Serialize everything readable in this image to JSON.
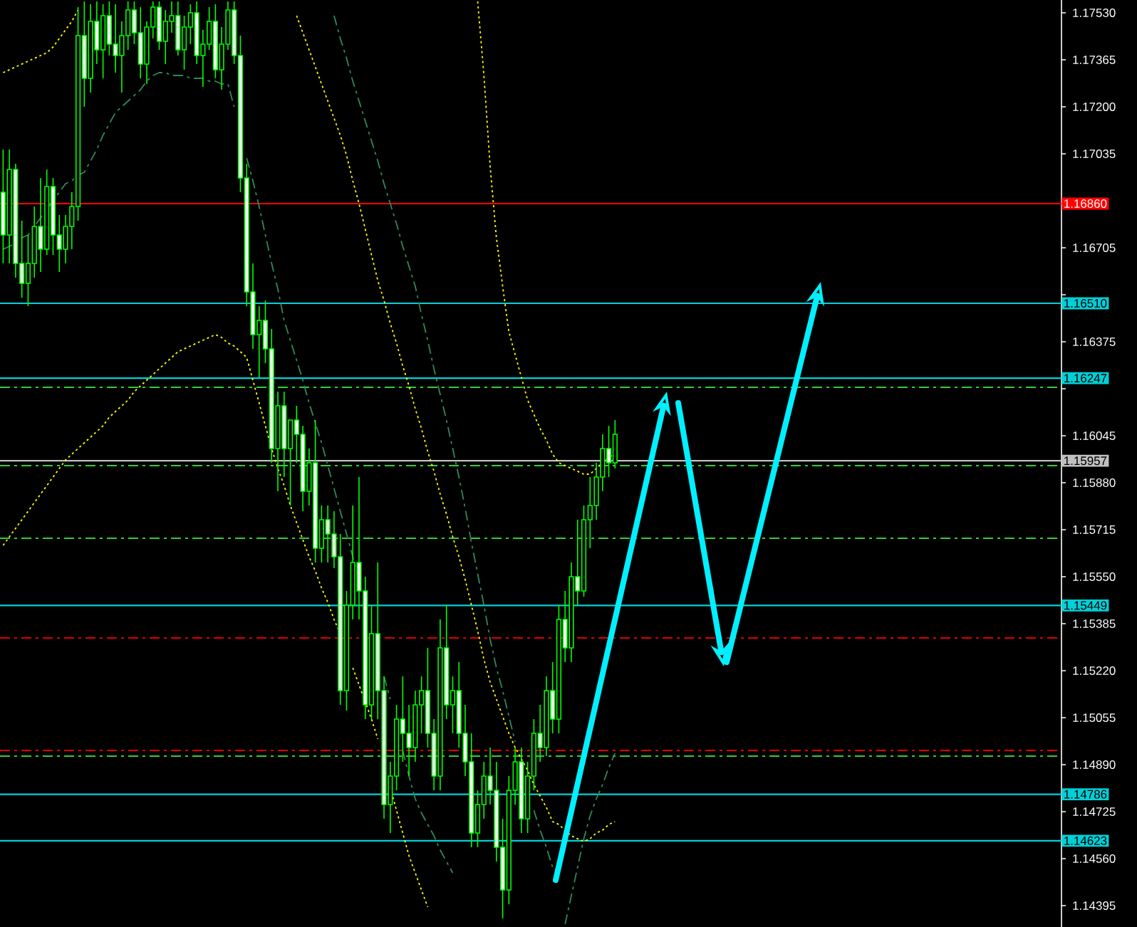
{
  "chart_data": {
    "type": "candlestick",
    "categories": [
      null,
      null,
      null,
      null,
      null,
      null,
      null,
      null,
      null,
      null,
      null,
      null,
      null,
      null,
      null,
      null,
      null,
      null,
      null,
      null,
      null,
      null,
      null,
      null,
      null,
      null,
      null,
      null,
      null,
      null,
      null,
      null,
      null,
      null,
      null,
      null,
      null,
      null,
      null,
      null,
      null,
      null,
      null,
      null,
      null,
      null,
      null,
      null,
      null,
      null,
      null,
      null,
      null,
      null,
      null,
      null,
      null,
      null,
      null,
      null,
      null,
      null,
      null,
      null,
      null,
      null,
      null,
      null,
      null,
      null,
      null,
      null,
      null,
      null,
      null,
      null,
      null,
      null,
      null,
      null,
      null,
      null,
      null,
      null,
      null,
      null,
      null,
      null,
      null,
      null,
      null,
      null,
      null,
      null,
      null,
      null,
      null,
      null,
      null,
      null,
      null,
      null,
      null,
      null,
      null,
      null,
      null,
      null,
      null,
      null,
      null,
      null,
      null,
      null,
      null,
      null,
      null,
      null,
      null,
      null,
      null,
      null,
      null,
      null,
      null,
      null,
      null,
      null,
      null,
      null,
      null,
      null,
      null,
      null,
      null,
      null,
      null,
      null,
      null,
      null,
      null,
      null,
      null,
      null,
      null,
      null,
      null,
      null,
      null,
      null,
      null,
      null,
      null,
      null,
      null,
      null,
      null,
      null,
      null,
      null,
      null,
      null,
      null,
      null,
      null,
      null,
      null,
      null,
      null,
      null
    ],
    "legend": false,
    "color": "#00ff00",
    "ohlc": [
      [
        1.169,
        1.1705,
        1.1665,
        1.1675
      ],
      [
        1.1675,
        1.1705,
        1.1665,
        1.1698
      ],
      [
        1.1698,
        1.17,
        1.166,
        1.1665
      ],
      [
        1.1665,
        1.168,
        1.1653,
        1.1658
      ],
      [
        1.1658,
        1.1675,
        1.165,
        1.1665
      ],
      [
        1.1665,
        1.1685,
        1.166,
        1.1678
      ],
      [
        1.1678,
        1.1695,
        1.1662,
        1.167
      ],
      [
        1.167,
        1.1698,
        1.1668,
        1.1692
      ],
      [
        1.1692,
        1.1695,
        1.1668,
        1.1675
      ],
      [
        1.1675,
        1.1682,
        1.1662,
        1.167
      ],
      [
        1.167,
        1.1682,
        1.1665,
        1.1678
      ],
      [
        1.1678,
        1.169,
        1.167,
        1.1685
      ],
      [
        1.1685,
        1.1755,
        1.168,
        1.1745
      ],
      [
        1.1745,
        1.1757,
        1.172,
        1.173
      ],
      [
        1.173,
        1.1756,
        1.1725,
        1.175
      ],
      [
        1.175,
        1.1757,
        1.1735,
        1.174
      ],
      [
        1.174,
        1.1756,
        1.173,
        1.1752
      ],
      [
        1.1752,
        1.1757,
        1.1738,
        1.1742
      ],
      [
        1.1742,
        1.1756,
        1.1732,
        1.1738
      ],
      [
        1.1738,
        1.175,
        1.1725,
        1.1745
      ],
      [
        1.1745,
        1.1757,
        1.174,
        1.1754
      ],
      [
        1.1754,
        1.1757,
        1.1742,
        1.1746
      ],
      [
        1.1746,
        1.1755,
        1.173,
        1.1735
      ],
      [
        1.1735,
        1.175,
        1.1728,
        1.1748
      ],
      [
        1.1748,
        1.1757,
        1.1744,
        1.1755
      ],
      [
        1.1755,
        1.1757,
        1.174,
        1.1743
      ],
      [
        1.1743,
        1.1754,
        1.1735,
        1.175
      ],
      [
        1.175,
        1.1757,
        1.1746,
        1.1752
      ],
      [
        1.1752,
        1.1757,
        1.1738,
        1.174
      ],
      [
        1.174,
        1.1752,
        1.1733,
        1.1748
      ],
      [
        1.1748,
        1.1756,
        1.1742,
        1.1753
      ],
      [
        1.1753,
        1.1757,
        1.1735,
        1.1738
      ],
      [
        1.1738,
        1.1747,
        1.1727,
        1.1742
      ],
      [
        1.1742,
        1.1755,
        1.174,
        1.175
      ],
      [
        1.175,
        1.1756,
        1.173,
        1.1733
      ],
      [
        1.1733,
        1.1748,
        1.1726,
        1.1742
      ],
      [
        1.1742,
        1.1757,
        1.174,
        1.1754
      ],
      [
        1.1754,
        1.1757,
        1.1735,
        1.1738
      ],
      [
        1.1738,
        1.1745,
        1.169,
        1.1695
      ],
      [
        1.1695,
        1.17,
        1.165,
        1.1655
      ],
      [
        1.1655,
        1.1665,
        1.1635,
        1.164
      ],
      [
        1.164,
        1.165,
        1.1625,
        1.1645
      ],
      [
        1.1645,
        1.1652,
        1.163,
        1.1635
      ],
      [
        1.1635,
        1.1642,
        1.1595,
        1.16
      ],
      [
        1.16,
        1.162,
        1.1585,
        1.1615
      ],
      [
        1.1615,
        1.162,
        1.159,
        1.16
      ],
      [
        1.16,
        1.161,
        1.158,
        1.161
      ],
      [
        1.161,
        1.1615,
        1.1595,
        1.1605
      ],
      [
        1.1605,
        1.1608,
        1.1578,
        1.1585
      ],
      [
        1.1585,
        1.16,
        1.158,
        1.1595
      ],
      [
        1.1595,
        1.161,
        1.156,
        1.1565
      ],
      [
        1.1565,
        1.158,
        1.156,
        1.1575
      ],
      [
        1.1575,
        1.158,
        1.156,
        1.157
      ],
      [
        1.157,
        1.1578,
        1.1558,
        1.1562
      ],
      [
        1.1562,
        1.157,
        1.151,
        1.1515
      ],
      [
        1.1515,
        1.155,
        1.1508,
        1.1545
      ],
      [
        1.1545,
        1.158,
        1.154,
        1.156
      ],
      [
        1.156,
        1.159,
        1.154,
        1.155
      ],
      [
        1.155,
        1.1555,
        1.1505,
        1.151
      ],
      [
        1.151,
        1.1545,
        1.1505,
        1.1535
      ],
      [
        1.1535,
        1.156,
        1.1505,
        1.1515
      ],
      [
        1.1515,
        1.152,
        1.147,
        1.1475
      ],
      [
        1.1475,
        1.149,
        1.1465,
        1.1485
      ],
      [
        1.1485,
        1.151,
        1.148,
        1.1505
      ],
      [
        1.1505,
        1.152,
        1.149,
        1.15
      ],
      [
        1.15,
        1.151,
        1.1485,
        1.1495
      ],
      [
        1.1495,
        1.1515,
        1.149,
        1.151
      ],
      [
        1.151,
        1.152,
        1.15,
        1.1515
      ],
      [
        1.1515,
        1.153,
        1.1495,
        1.15
      ],
      [
        1.15,
        1.1505,
        1.148,
        1.1485
      ],
      [
        1.1485,
        1.154,
        1.148,
        1.153
      ],
      [
        1.153,
        1.1545,
        1.1505,
        1.151
      ],
      [
        1.151,
        1.152,
        1.15,
        1.1515
      ],
      [
        1.1515,
        1.1525,
        1.1495,
        1.15
      ],
      [
        1.15,
        1.151,
        1.1485,
        1.149
      ],
      [
        1.149,
        1.15,
        1.146,
        1.1465
      ],
      [
        1.1465,
        1.148,
        1.146,
        1.1475
      ],
      [
        1.1475,
        1.149,
        1.147,
        1.1485
      ],
      [
        1.1485,
        1.1495,
        1.1475,
        1.148
      ],
      [
        1.148,
        1.149,
        1.1455,
        1.146
      ],
      [
        1.146,
        1.147,
        1.1435,
        1.1445
      ],
      [
        1.1445,
        1.1485,
        1.144,
        1.148
      ],
      [
        1.148,
        1.1495,
        1.1475,
        1.149
      ],
      [
        1.149,
        1.1495,
        1.1465,
        1.147
      ],
      [
        1.147,
        1.149,
        1.1465,
        1.1485
      ],
      [
        1.1485,
        1.1505,
        1.148,
        1.15
      ],
      [
        1.15,
        1.151,
        1.149,
        1.1495
      ],
      [
        1.1495,
        1.152,
        1.1492,
        1.1515
      ],
      [
        1.1515,
        1.1525,
        1.15,
        1.1505
      ],
      [
        1.1505,
        1.1545,
        1.15,
        1.154
      ],
      [
        1.154,
        1.155,
        1.1525,
        1.153
      ],
      [
        1.153,
        1.156,
        1.1525,
        1.1555
      ],
      [
        1.1555,
        1.1575,
        1.1545,
        1.155
      ],
      [
        1.155,
        1.158,
        1.1548,
        1.1575
      ],
      [
        1.1575,
        1.159,
        1.1565,
        1.158
      ],
      [
        1.158,
        1.1595,
        1.1575,
        1.159
      ],
      [
        1.159,
        1.1605,
        1.1585,
        1.16
      ],
      [
        1.16,
        1.1608,
        1.159,
        1.1595
      ],
      [
        1.1595,
        1.161,
        1.1593,
        1.1605
      ],
      null,
      null,
      null,
      null,
      null,
      null,
      null,
      null,
      null,
      null,
      null,
      null,
      null,
      null,
      null,
      null,
      null,
      null,
      null,
      null,
      null,
      null,
      null,
      null,
      null,
      null,
      null,
      null,
      null,
      null,
      null,
      null,
      null,
      null,
      null,
      null,
      null,
      null,
      null,
      null,
      null,
      null,
      null,
      null,
      null,
      null,
      null,
      null,
      null,
      null,
      null,
      null,
      null,
      null,
      null,
      null,
      null,
      null,
      null,
      null,
      null,
      null,
      null,
      null,
      null,
      null,
      null,
      null,
      null,
      null,
      null
    ],
    "series": [
      {
        "type": "line",
        "color": "#ffff00",
        "line_style": "dotted",
        "values": [
          1.1732,
          1.1733,
          1.1734,
          1.1735,
          1.1736,
          1.1737,
          1.1738,
          1.1739,
          1.1741,
          1.1744,
          1.1747,
          1.175,
          1.1754,
          null,
          null,
          null,
          null,
          null,
          null,
          null,
          null,
          null,
          null,
          null,
          null,
          null,
          null,
          null,
          null,
          null,
          null,
          null,
          null,
          null,
          null,
          null,
          null,
          null,
          null,
          null,
          null,
          null,
          null,
          null,
          null,
          null,
          null,
          null,
          null,
          null,
          null,
          null,
          null,
          null,
          null,
          null,
          null,
          null,
          null,
          null,
          null,
          null,
          null,
          null,
          null,
          null,
          null,
          null,
          null,
          null,
          null,
          null,
          null,
          null,
          null,
          null,
          null,
          null,
          null,
          null,
          null,
          null,
          null,
          null,
          null,
          null,
          null,
          null,
          null,
          null,
          null,
          null,
          null,
          null,
          null,
          null,
          null,
          null,
          null,
          null,
          null,
          null,
          null,
          null,
          null,
          null,
          null,
          null,
          null,
          null,
          null,
          null,
          null,
          null,
          null,
          null,
          null,
          null,
          null,
          null,
          null,
          null,
          null,
          null,
          null,
          null,
          null,
          null,
          null,
          null,
          null,
          null,
          null,
          null,
          null,
          null,
          null,
          null,
          null,
          null,
          null,
          null,
          null,
          null,
          null,
          null,
          null,
          null,
          null,
          null,
          null,
          null,
          null,
          null,
          null,
          null,
          null,
          null,
          null,
          null,
          null,
          null,
          null,
          null,
          null,
          null,
          null,
          null,
          null,
          null
        ]
      },
      {
        "type": "line",
        "color": "#ffff00",
        "line_style": "dotted",
        "values": [
          null,
          null,
          null,
          null,
          null,
          null,
          null,
          null,
          null,
          null,
          null,
          null,
          null,
          null,
          null,
          null,
          null,
          null,
          null,
          null,
          null,
          null,
          null,
          null,
          null,
          null,
          null,
          null,
          null,
          null,
          null,
          null,
          null,
          null,
          null,
          null,
          null,
          null,
          null,
          null,
          null,
          null,
          null,
          null,
          null,
          null,
          null,
          1.1752,
          1.1746,
          1.174,
          1.1734,
          1.1728,
          1.1722,
          1.1716,
          1.171,
          1.1703,
          1.1694,
          1.1686,
          1.1677,
          1.1668,
          1.1659,
          1.1652,
          1.1644,
          1.1637,
          1.1629,
          1.1622,
          1.1614,
          1.1607,
          1.1599,
          1.1592,
          1.1584,
          1.1577,
          1.1569,
          1.1562,
          1.1554,
          1.1545,
          1.1536,
          1.1526,
          1.1518,
          1.1512,
          1.1506,
          1.15,
          1.1495,
          1.1491,
          1.1487,
          1.1482,
          1.1478,
          1.1474,
          1.1469,
          1.1468,
          1.1466,
          1.1464,
          1.1463,
          1.1462,
          1.1463,
          1.1465,
          1.1466,
          1.1468,
          1.1469,
          null,
          null,
          null,
          null,
          null,
          null,
          null,
          null,
          null,
          null,
          null,
          null,
          null,
          null,
          null,
          null,
          null,
          null,
          null,
          null,
          null,
          null,
          null,
          null,
          null,
          null,
          null,
          null,
          null,
          null,
          null,
          null,
          null,
          null,
          null,
          null,
          null,
          null,
          null,
          null,
          null,
          null,
          null,
          null,
          null,
          null,
          null,
          null,
          null,
          null,
          null,
          null,
          null,
          null,
          null,
          null,
          null,
          null,
          null,
          null,
          null,
          null,
          null,
          null,
          null,
          null,
          null,
          null,
          null,
          null,
          null
        ]
      },
      {
        "type": "line",
        "color": "#ffff00",
        "line_style": "dotted",
        "values": [
          1.1566,
          1.1569,
          1.1572,
          1.1575,
          1.1578,
          1.1581,
          1.1584,
          1.1587,
          1.159,
          1.1593,
          1.1596,
          1.1598,
          1.16,
          1.1602,
          1.1604,
          1.1606,
          1.1608,
          1.1611,
          1.1613,
          1.1615,
          1.1617,
          1.162,
          1.1622,
          1.1624,
          1.1626,
          1.1628,
          1.163,
          1.1632,
          1.1634,
          1.1635,
          1.1636,
          1.1637,
          1.1638,
          1.1639,
          1.164,
          1.1639,
          1.1637,
          1.1636,
          1.1634,
          1.1632,
          1.1624,
          1.1616,
          1.1608,
          1.16,
          1.1593,
          1.1587,
          1.158,
          1.1574,
          1.1568,
          1.1562,
          1.1557,
          1.1551,
          1.1546,
          1.154,
          1.1535,
          null,
          1.1523,
          1.1517,
          1.1511,
          1.1505,
          1.1498,
          null,
          1.1481,
          1.1473,
          1.1465,
          1.1457,
          1.1451,
          1.1445,
          1.1439,
          null,
          null,
          null,
          null,
          null,
          null,
          null,
          null,
          null,
          null,
          null,
          null,
          null,
          null,
          null,
          null,
          null,
          null,
          null,
          null,
          null,
          null,
          null,
          null,
          null,
          null,
          null,
          null,
          null,
          null,
          null,
          null,
          null,
          null,
          null,
          null,
          null,
          null,
          null,
          null,
          null,
          null,
          null,
          null,
          null,
          null,
          null,
          null,
          null,
          null,
          null,
          null,
          null,
          null,
          null,
          null,
          null,
          null,
          null,
          null,
          null,
          null,
          null,
          null,
          null,
          null,
          null,
          null,
          null,
          null,
          null,
          null,
          null,
          null,
          null,
          null,
          null,
          null,
          null,
          null,
          null,
          null,
          null,
          null,
          null,
          null,
          null,
          null,
          null,
          null,
          null,
          null,
          null,
          null,
          null,
          null,
          null,
          null,
          null,
          null,
          null
        ]
      },
      {
        "type": "line",
        "color": "#ffff00",
        "line_style": "dotted",
        "values": [
          null,
          null,
          null,
          null,
          null,
          null,
          null,
          null,
          null,
          null,
          null,
          null,
          null,
          null,
          null,
          null,
          null,
          null,
          null,
          null,
          null,
          null,
          null,
          null,
          null,
          null,
          null,
          null,
          null,
          null,
          null,
          null,
          null,
          null,
          null,
          null,
          null,
          null,
          null,
          null,
          null,
          null,
          null,
          null,
          null,
          null,
          null,
          null,
          null,
          null,
          null,
          null,
          null,
          null,
          null,
          null,
          null,
          null,
          null,
          null,
          null,
          null,
          null,
          null,
          null,
          null,
          null,
          null,
          null,
          null,
          null,
          null,
          null,
          null,
          null,
          null,
          1.1757,
          1.1731,
          1.1699,
          1.1674,
          1.1657,
          1.1641,
          1.1633,
          1.1625,
          1.1617,
          1.1612,
          1.1607,
          1.1603,
          1.1598,
          1.1595,
          1.1594,
          1.1593,
          1.1592,
          1.1591,
          1.1591,
          1.1593,
          1.1595,
          1.1597,
          1.1598,
          null,
          null,
          null,
          null,
          null,
          null,
          null,
          null,
          null,
          null,
          null,
          null,
          null,
          null,
          null,
          null,
          null,
          null,
          null,
          null,
          null,
          null,
          null,
          null,
          null,
          null,
          null,
          null,
          null,
          null,
          null,
          null,
          null,
          null,
          null,
          null,
          null,
          null,
          null,
          null,
          null,
          null,
          null,
          null,
          null,
          null,
          null,
          null,
          null,
          null,
          null,
          null,
          null,
          null,
          null,
          null,
          null,
          null,
          null,
          null,
          null,
          null,
          null,
          null,
          null,
          null,
          null,
          null,
          null,
          null,
          null
        ]
      },
      {
        "type": "line",
        "color": "#2e8b57",
        "line_style": "dashed",
        "values": [
          1.167,
          1.1671,
          1.1672,
          1.1674,
          1.1675,
          1.1678,
          1.1681,
          1.1684,
          1.1687,
          1.169,
          1.1693,
          1.1694,
          1.1696,
          1.1697,
          1.1701,
          1.1705,
          1.171,
          1.1714,
          1.1718,
          1.172,
          1.1722,
          1.1724,
          1.1726,
          1.1729,
          1.1731,
          1.1732,
          1.1732,
          1.1731,
          1.1731,
          1.1731,
          1.173,
          1.173,
          1.173,
          1.1729,
          1.1729,
          1.1728,
          1.1728,
          1.172,
          null,
          1.1702,
          1.1694,
          1.1685,
          1.1675,
          1.1665,
          1.1656,
          1.1645,
          1.1638,
          1.1631,
          1.1624,
          1.1616,
          1.1609,
          1.1602,
          1.1594,
          1.1586,
          1.1578,
          1.157,
          1.1562,
          1.1554,
          null,
          null,
          null,
          1.152,
          1.1512,
          null,
          1.1494,
          1.1485,
          1.1477,
          1.1472,
          1.1468,
          1.1464,
          1.1459,
          1.1455,
          1.1451,
          null,
          null,
          null,
          null,
          null,
          null,
          null,
          null,
          null,
          null,
          null,
          null,
          null,
          null,
          null,
          null,
          null,
          null,
          null,
          null,
          null,
          null,
          null,
          null,
          null,
          null,
          null,
          null,
          null,
          null,
          null,
          null,
          null,
          null,
          null,
          null,
          null,
          null,
          null,
          null,
          null,
          null,
          null,
          null,
          null,
          null,
          null,
          null,
          null,
          null,
          null,
          null,
          null,
          null,
          null,
          null,
          null,
          null,
          null,
          null,
          null,
          null,
          null,
          null,
          null,
          null,
          null,
          null,
          null,
          null,
          null,
          null,
          null,
          null,
          null,
          null,
          null,
          null,
          null,
          null,
          null,
          null,
          null,
          null,
          null,
          null,
          null,
          null,
          null,
          null,
          null,
          null,
          null,
          null,
          null,
          null,
          null
        ]
      },
      {
        "type": "line",
        "color": "#2e8b57",
        "line_style": "dashed",
        "values": [
          null,
          null,
          null,
          null,
          null,
          null,
          null,
          null,
          null,
          null,
          null,
          null,
          null,
          null,
          null,
          null,
          null,
          null,
          null,
          null,
          null,
          null,
          null,
          null,
          null,
          null,
          null,
          null,
          null,
          null,
          null,
          null,
          null,
          null,
          null,
          null,
          null,
          null,
          null,
          null,
          null,
          null,
          null,
          null,
          null,
          null,
          null,
          null,
          null,
          null,
          null,
          null,
          null,
          1.1752,
          1.1744,
          1.1737,
          1.1729,
          1.1722,
          1.1715,
          1.1708,
          1.1701,
          1.1693,
          1.1686,
          1.1679,
          1.1671,
          1.1664,
          1.1657,
          1.1647,
          1.1638,
          1.1628,
          1.1619,
          1.161,
          1.16,
          1.159,
          1.1579,
          1.1567,
          1.1556,
          1.1545,
          1.1533,
          1.1523,
          1.1515,
          1.1506,
          1.1497,
          null,
          null,
          1.1473,
          1.1466,
          1.146,
          1.1453,
          null,
          null,
          null,
          null,
          null,
          null,
          null,
          null,
          null,
          null,
          null,
          null,
          null,
          null,
          null,
          null,
          null,
          null,
          null,
          null,
          null,
          null,
          null,
          null,
          null,
          null,
          null,
          null,
          null,
          null,
          null,
          null,
          null,
          null,
          null,
          null,
          null,
          null,
          null,
          null,
          null,
          null,
          null,
          null,
          null,
          null,
          null,
          null,
          null,
          null,
          null,
          null,
          null,
          null,
          null,
          null,
          null,
          null,
          null,
          null,
          null,
          null,
          null,
          null,
          null,
          null,
          null,
          null,
          null,
          null,
          null,
          null,
          null,
          null,
          null,
          null,
          null,
          null,
          null,
          null,
          null
        ]
      },
      {
        "type": "line",
        "color": "#2e8b57",
        "line_style": "dashed",
        "values": [
          null,
          null,
          null,
          null,
          null,
          null,
          null,
          null,
          null,
          null,
          null,
          null,
          null,
          null,
          null,
          null,
          null,
          null,
          null,
          null,
          null,
          null,
          null,
          null,
          null,
          null,
          null,
          null,
          null,
          null,
          null,
          null,
          null,
          null,
          null,
          null,
          null,
          null,
          null,
          null,
          null,
          null,
          null,
          null,
          null,
          null,
          null,
          null,
          null,
          null,
          null,
          null,
          null,
          null,
          null,
          null,
          null,
          null,
          null,
          null,
          null,
          null,
          null,
          null,
          null,
          null,
          null,
          null,
          null,
          null,
          null,
          null,
          null,
          null,
          null,
          null,
          null,
          null,
          null,
          null,
          null,
          null,
          null,
          null,
          null,
          null,
          null,
          null,
          null,
          null,
          1.1433,
          1.1443,
          1.1453,
          1.1463,
          1.1471,
          1.1477,
          1.1482,
          1.1488,
          1.1493,
          null,
          null,
          null,
          null,
          null,
          null,
          null,
          null,
          null,
          null,
          null,
          null,
          null,
          null,
          null,
          null,
          null,
          null,
          null,
          null,
          null,
          null,
          null,
          null,
          null,
          null,
          null,
          null,
          null,
          null,
          null,
          null,
          null,
          null,
          null,
          null,
          null,
          null,
          null,
          null,
          null,
          null,
          null,
          null,
          null,
          null,
          null,
          null,
          null,
          null,
          null,
          null,
          null,
          null,
          null,
          null,
          null,
          null,
          null,
          null,
          null,
          null,
          null,
          null,
          null,
          null,
          null,
          null,
          null,
          null,
          null
        ]
      }
    ],
    "ylim": [
      1.1432,
      1.17575
    ],
    "yticks": [
      {
        "value": 1.1753,
        "label": "1.17530"
      },
      {
        "value": 1.17365,
        "label": "1.17365"
      },
      {
        "value": 1.172,
        "label": "1.17200"
      },
      {
        "value": 1.17035,
        "label": "1.17035"
      },
      {
        "value": 1.16705,
        "label": "1.16705"
      },
      {
        "value": 1.1654,
        "label": null
      },
      {
        "value": 1.16375,
        "label": "1.16375"
      },
      {
        "value": 1.1621,
        "label": null
      },
      {
        "value": 1.16045,
        "label": "1.16045"
      },
      {
        "value": 1.1588,
        "label": "1.15880"
      },
      {
        "value": 1.15715,
        "label": "1.15715"
      },
      {
        "value": 1.1555,
        "label": "1.15550"
      },
      {
        "value": 1.15385,
        "label": "1.15385"
      },
      {
        "value": 1.1522,
        "label": "1.15220"
      },
      {
        "value": 1.15055,
        "label": "1.15055"
      },
      {
        "value": 1.1489,
        "label": "1.14890"
      },
      {
        "value": 1.14725,
        "label": "1.14725"
      },
      {
        "value": 1.1456,
        "label": "1.14560"
      },
      {
        "value": 1.14395,
        "label": "1.14395"
      }
    ],
    "tick_labels": "y",
    "grid": false,
    "ref_lines": [
      {
        "axis": "y",
        "value": 1.1686,
        "label": "1.16860",
        "color": "#ff0000",
        "line_style": "solid"
      },
      {
        "axis": "y",
        "value": 1.1651,
        "label": "1.16510",
        "color": "#00d0d8",
        "line_style": "solid"
      },
      {
        "axis": "y",
        "value": 1.16247,
        "label": "1.16247",
        "color": "#00d0d8",
        "line_style": "solid"
      },
      {
        "axis": "y",
        "value": 1.16215,
        "color": "#32cd32",
        "line_style": "dashed"
      },
      {
        "axis": "y",
        "value": 1.15957,
        "label": "1.15957",
        "color": "#c0c0c0",
        "line_style": "solid"
      },
      {
        "axis": "y",
        "value": 1.1594,
        "color": "#32cd32",
        "line_style": "dashed"
      },
      {
        "axis": "y",
        "value": 1.15685,
        "color": "#32cd32",
        "line_style": "dashed"
      },
      {
        "axis": "y",
        "value": 1.15449,
        "label": "1.15449",
        "color": "#00d0d8",
        "line_style": "solid"
      },
      {
        "axis": "y",
        "value": 1.15335,
        "color": "#e00000",
        "line_style": "dashed"
      },
      {
        "axis": "y",
        "value": 1.1494,
        "color": "#e00000",
        "line_style": "dashed"
      },
      {
        "axis": "y",
        "value": 1.1492,
        "color": "#32cd32",
        "line_style": "dashed"
      },
      {
        "axis": "y",
        "value": 1.14786,
        "label": "1.14786",
        "color": "#00d0d8",
        "line_style": "solid"
      },
      {
        "axis": "y",
        "value": 1.14623,
        "label": "1.14623",
        "color": "#00d0d8",
        "line_style": "solid"
      }
    ]
  }
}
